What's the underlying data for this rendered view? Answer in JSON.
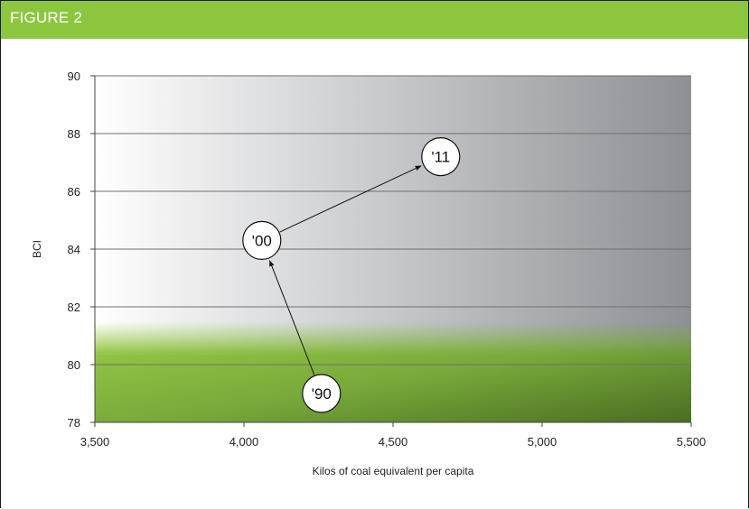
{
  "figure": {
    "label": "FIGURE 2",
    "header_color": "#8cc63f"
  },
  "chart_data": {
    "type": "scatter",
    "xlabel": "Kilos of coal equivalent per capita",
    "ylabel": "BCI",
    "xlim": [
      3500,
      5500
    ],
    "ylim": [
      78,
      90
    ],
    "x_ticks": [
      3500,
      4000,
      4500,
      5000,
      5500
    ],
    "x_tick_labels": [
      "3,500",
      "4,000",
      "4,500",
      "5,000",
      "5,500"
    ],
    "y_ticks": [
      78,
      80,
      82,
      84,
      86,
      88,
      90
    ],
    "y_tick_labels": [
      "78",
      "80",
      "82",
      "84",
      "86",
      "88",
      "90"
    ],
    "grid": true,
    "green_band_top": 81.3,
    "points": [
      {
        "label": "'90",
        "x": 4260,
        "y": 79.0
      },
      {
        "label": "'00",
        "x": 4060,
        "y": 84.3
      },
      {
        "label": "'11",
        "x": 4660,
        "y": 87.2
      }
    ],
    "arrows": [
      {
        "from": 0,
        "to": 1
      },
      {
        "from": 1,
        "to": 2
      }
    ],
    "colors": {
      "green_light": "#9ccf48",
      "green_dark": "#4a6e22",
      "gray_dark": "#8e9095"
    }
  }
}
